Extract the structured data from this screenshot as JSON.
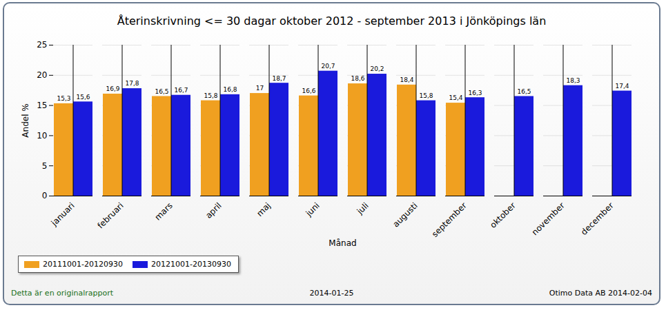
{
  "chart_data": {
    "type": "bar",
    "title": "Återinskrivning <= 30 dagar oktober 2012 - september 2013 i Jönköpings län",
    "x_label": "Månad",
    "y_label": "Andel %",
    "categories": [
      "januari",
      "februari",
      "mars",
      "april",
      "maj",
      "juni",
      "juli",
      "augusti",
      "september",
      "oktober",
      "november",
      "december"
    ],
    "series": [
      {
        "name": "20111001-20120930",
        "color": "#f0a020",
        "values": [
          15.3,
          16.9,
          16.5,
          15.8,
          17,
          16.6,
          18.6,
          18.4,
          15.4,
          null,
          null,
          null
        ],
        "value_labels": [
          "15,3",
          "16,9",
          "16,5",
          "15,8",
          "17",
          "16,6",
          "18,6",
          "18,4",
          "15,4",
          null,
          null,
          null
        ]
      },
      {
        "name": "20121001-20130930",
        "color": "#1a1adc",
        "values": [
          15.6,
          17.8,
          16.7,
          16.8,
          18.7,
          20.7,
          20.2,
          15.8,
          16.3,
          16.5,
          18.3,
          17.4
        ],
        "value_labels": [
          "15,6",
          "17,8",
          "16,7",
          "16,8",
          "18,7",
          "20,7",
          "20,2",
          "15,8",
          "16,3",
          "16,5",
          "18,3",
          "17,4"
        ]
      }
    ],
    "ylim": [
      0,
      25
    ],
    "yticks": [
      0,
      5,
      10,
      15,
      20,
      25
    ],
    "grid": true,
    "data_labels": true,
    "legend": "bottom-left",
    "annotations": [
      "Detta är en originalrapport",
      "2014-01-25",
      "Otimo Data AB 2014-02-04"
    ]
  }
}
